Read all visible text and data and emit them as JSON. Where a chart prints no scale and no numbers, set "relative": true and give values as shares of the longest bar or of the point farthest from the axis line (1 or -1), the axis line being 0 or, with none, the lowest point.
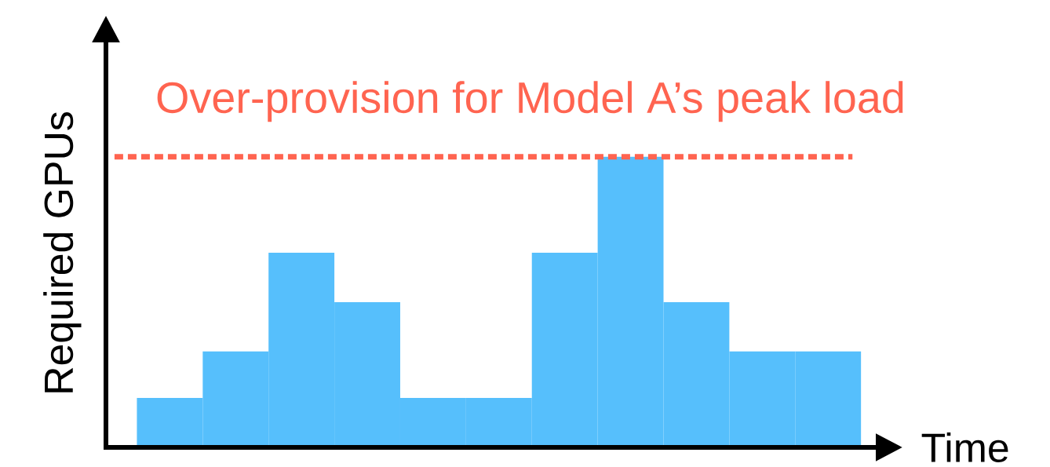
{
  "chart_data": {
    "type": "bar",
    "relative": true,
    "categories": [
      null,
      null,
      null,
      null,
      null,
      null,
      null,
      null,
      null,
      null,
      null
    ],
    "values": [
      0.17,
      0.33,
      0.67,
      0.5,
      0.17,
      0.17,
      0.67,
      1,
      0.5,
      0.33,
      0.33
    ],
    "color": "#56bffc",
    "xlabel": "Time",
    "ylabel": "Required GPUs",
    "ref_lines": [
      {
        "axis": "y",
        "value": 1,
        "label": "Over-provision for Model A’s peak load",
        "color": "#ff6450",
        "line_style": "dotted"
      }
    ]
  }
}
